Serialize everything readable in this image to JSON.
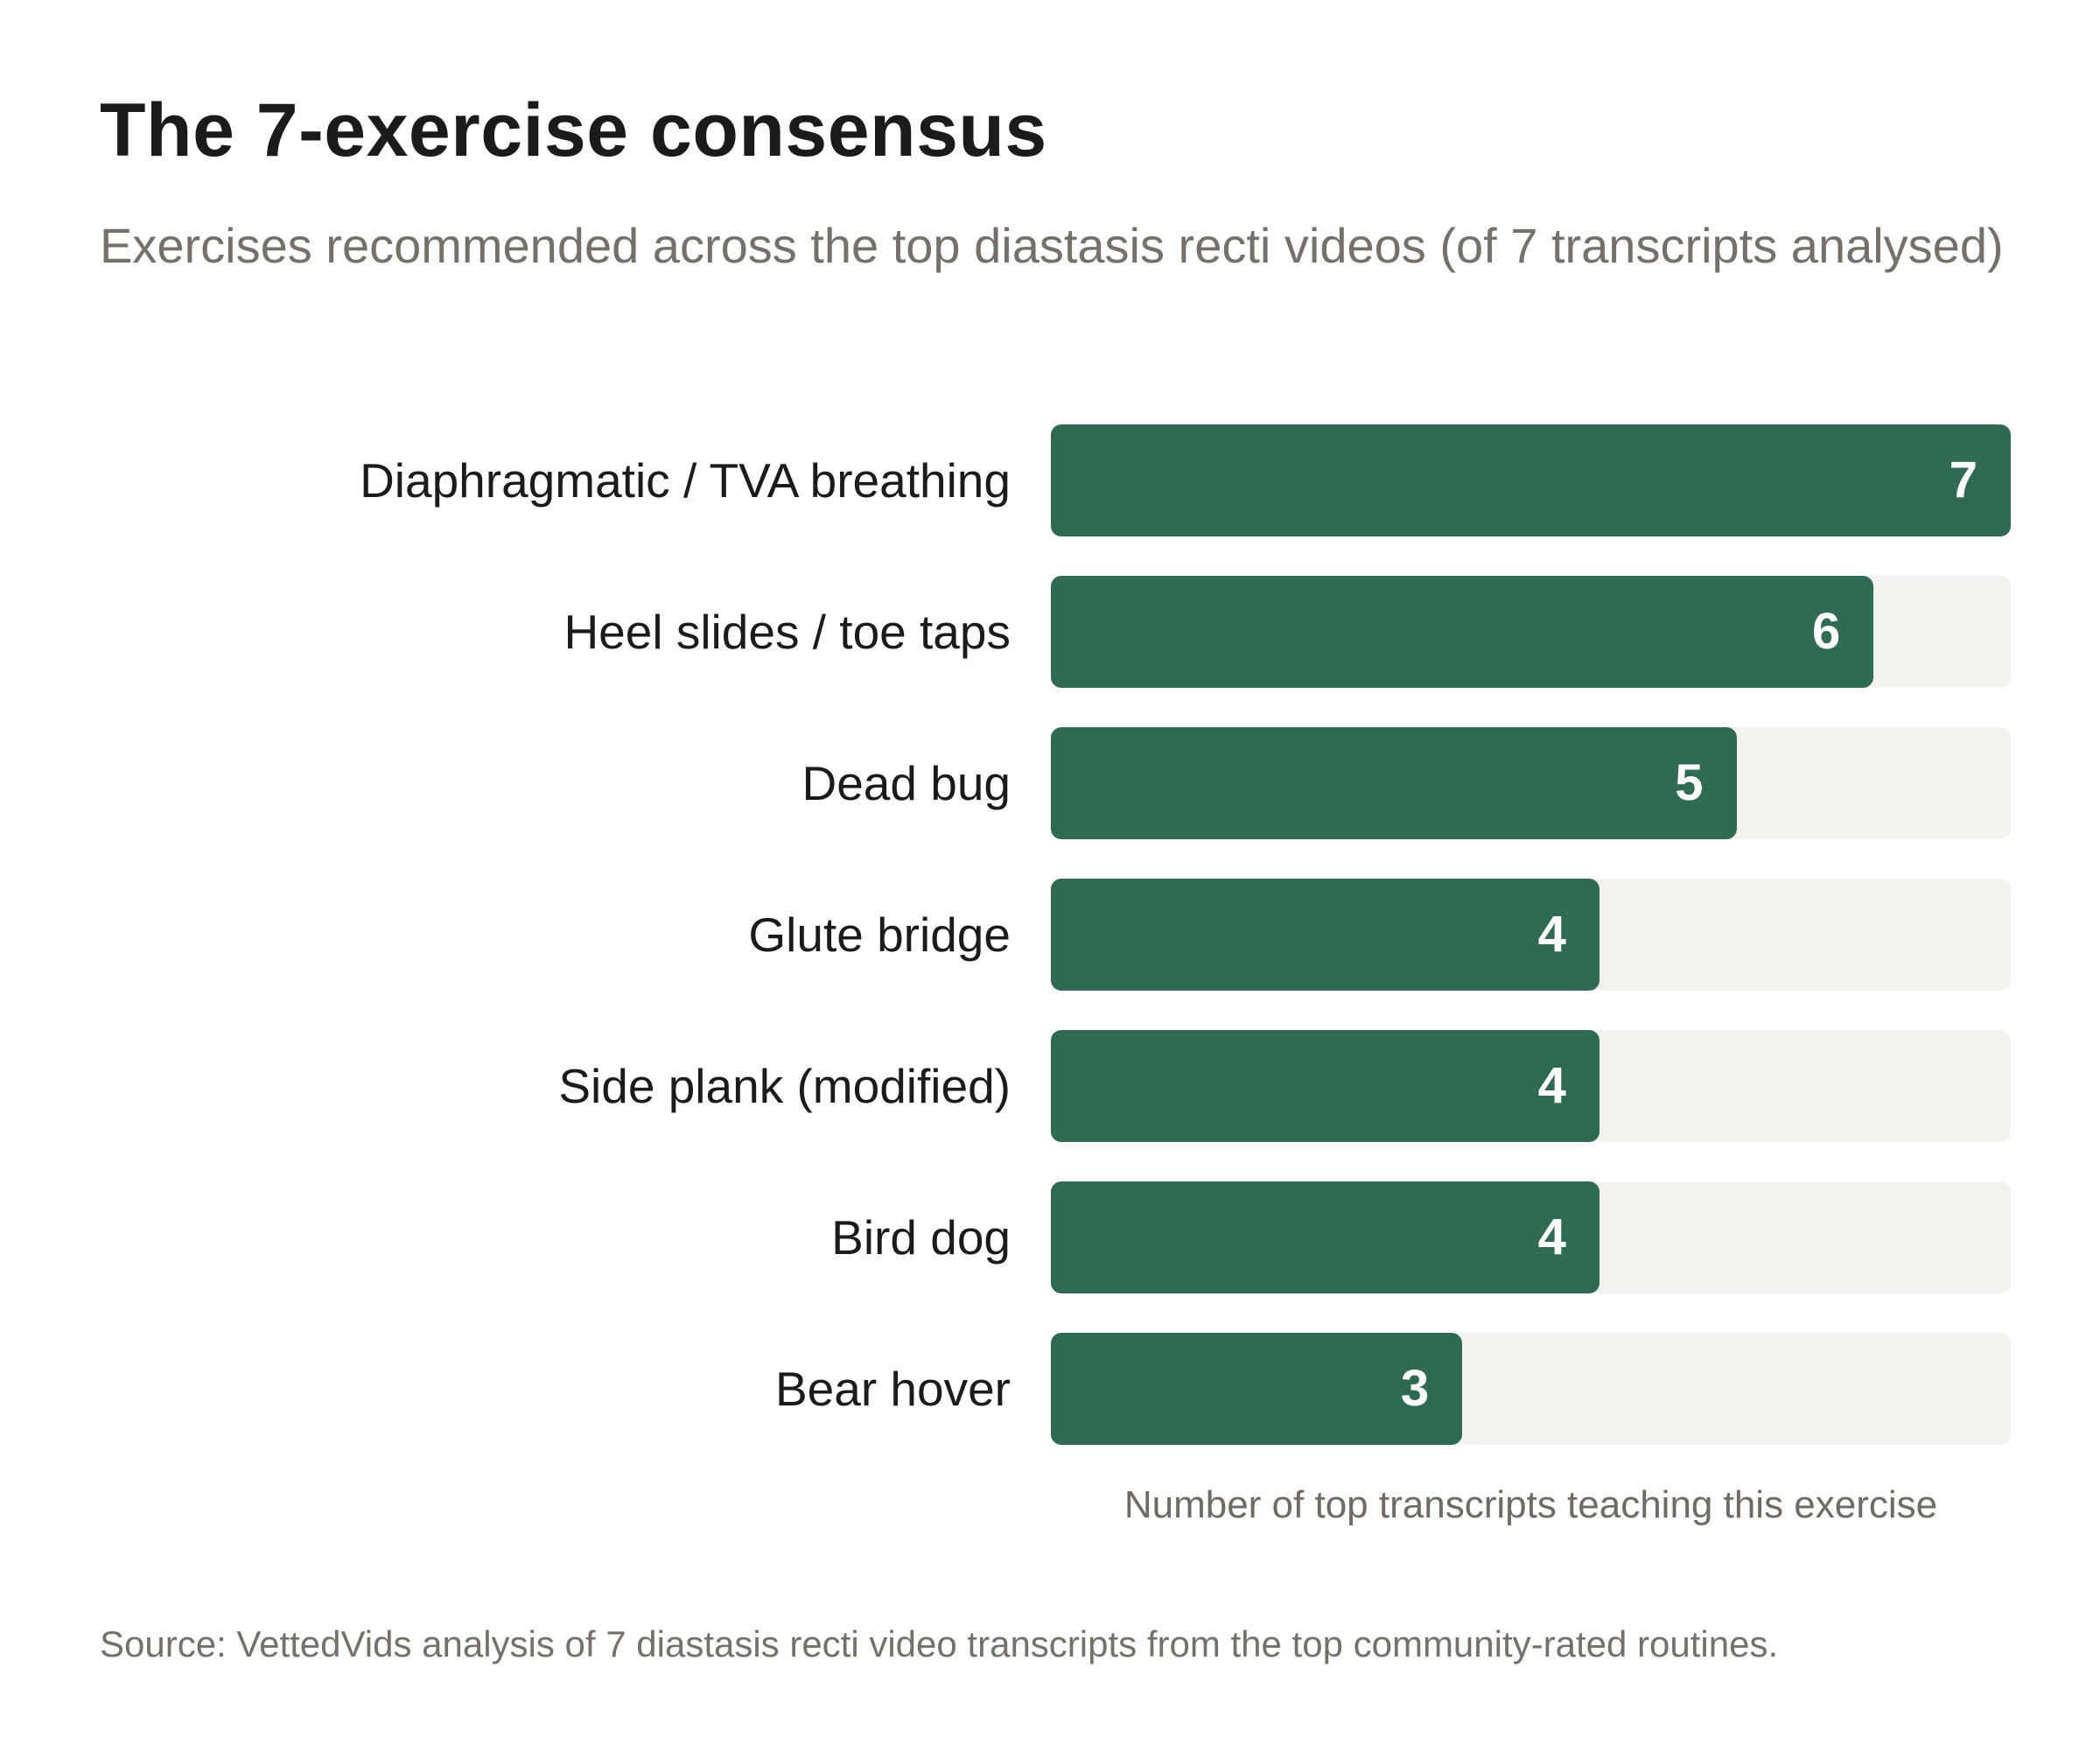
{
  "chart_data": {
    "type": "bar",
    "orientation": "horizontal",
    "title": "The 7-exercise consensus",
    "subtitle": "Exercises recommended across the top diastasis recti videos (of 7 transcripts analysed)",
    "categories": [
      "Diaphragmatic / TVA breathing",
      "Heel slides / toe taps",
      "Dead bug",
      "Glute bridge",
      "Side plank (modified)",
      "Bird dog",
      "Bear hover"
    ],
    "values": [
      7,
      6,
      5,
      4,
      4,
      4,
      3
    ],
    "xlabel": "Number of top transcripts teaching this exercise",
    "xlim": [
      0,
      7
    ],
    "grid": false,
    "data_labels": true,
    "source": "Source: VettedVids analysis of 7 diastasis recti video transcripts from the top community-rated routines.",
    "colors": {
      "bar": "#2f6b52",
      "track": "#f3f2ee"
    }
  }
}
